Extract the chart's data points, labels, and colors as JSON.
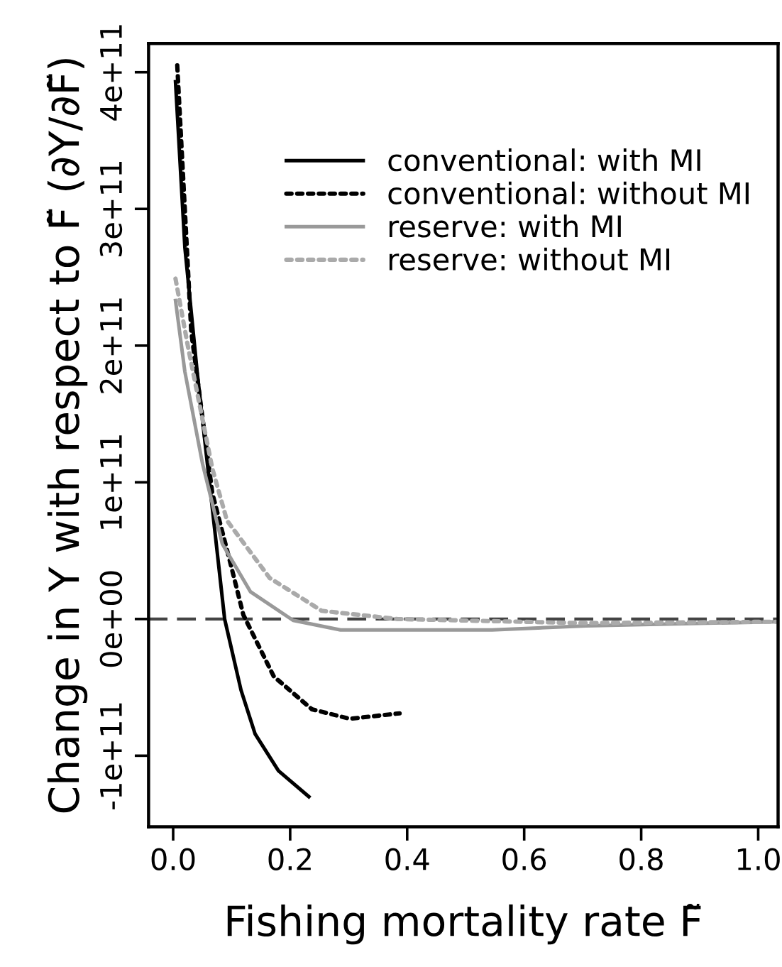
{
  "chart_data": {
    "type": "line",
    "xlabel": "Fishing mortality rate F̃",
    "ylabel": "Change in Y with respect to F̃ (∂Y/∂F̃)",
    "xlim": [
      -0.042,
      1.034
    ],
    "ylim": [
      -152000000000.0,
      421000000000.0
    ],
    "xticks": [
      {
        "value": 0,
        "label": "0.0"
      },
      0.2,
      0.4,
      0.6,
      0.8,
      {
        "value": 1,
        "label": "1.0"
      }
    ],
    "yticks": [
      {
        "value": -100000000000.0,
        "label": "-1e+11"
      },
      {
        "value": 0,
        "label": "0e+00"
      },
      {
        "value": 100000000000.0,
        "label": "1e+11"
      },
      {
        "value": 200000000000.0,
        "label": "2e+11"
      },
      {
        "value": 300000000000.0,
        "label": "3e+11"
      },
      {
        "value": 400000000000.0,
        "label": "4e+11"
      }
    ],
    "grid": false,
    "legend": "top right",
    "marker": "none",
    "ref_lines": [
      {
        "axis": "y",
        "value": 0,
        "label": null,
        "color": "#444444",
        "line_style": "dashed"
      }
    ],
    "series": [
      {
        "name": "conventional: with MI",
        "color": "#000000",
        "line_style": "solid",
        "x": [
          0.004,
          0.02,
          0.041,
          0.062,
          0.088,
          0.116,
          0.14,
          0.18,
          0.232
        ],
        "values": [
          393000000000.0,
          272000000000.0,
          181000000000.0,
          100000000000.0,
          0.0,
          -52000000000.0,
          -84000000000.0,
          -111000000000.0,
          -130000000000.0
        ]
      },
      {
        "name": "conventional: without MI",
        "color": "#000000",
        "line_style": "dotted",
        "x": [
          0.007,
          0.031,
          0.067,
          0.096,
          0.12,
          0.172,
          0.237,
          0.302,
          0.387
        ],
        "values": [
          405000000000.0,
          210000000000.0,
          92000000000.0,
          44000000000.0,
          3000000000.0,
          -42000000000.0,
          -66000000000.0,
          -73000000000.0,
          -69000000000.0
        ]
      },
      {
        "name": "reserve: with MI",
        "color": "#999999",
        "line_style": "solid",
        "x": [
          0.004,
          0.02,
          0.05,
          0.084,
          0.132,
          0.205,
          0.286,
          0.545,
          0.706,
          1.03
        ],
        "values": [
          233000000000.0,
          181000000000.0,
          114000000000.0,
          55000000000.0,
          20000000000.0,
          -1000000000.0,
          -8000000000.0,
          -8000000000.0,
          -5000000000.0,
          -2000000000.0
        ]
      },
      {
        "name": "reserve: without MI",
        "color": "#aaaaaa",
        "line_style": "dotted",
        "x": [
          0.004,
          0.025,
          0.067,
          0.092,
          0.165,
          0.254,
          0.383,
          0.7,
          1.03
        ],
        "values": [
          249000000000.0,
          200000000000.0,
          110000000000.0,
          72000000000.0,
          30000000000.0,
          6000000000.0,
          0.0,
          -3000000000.0,
          -2000000000.0
        ]
      }
    ]
  }
}
